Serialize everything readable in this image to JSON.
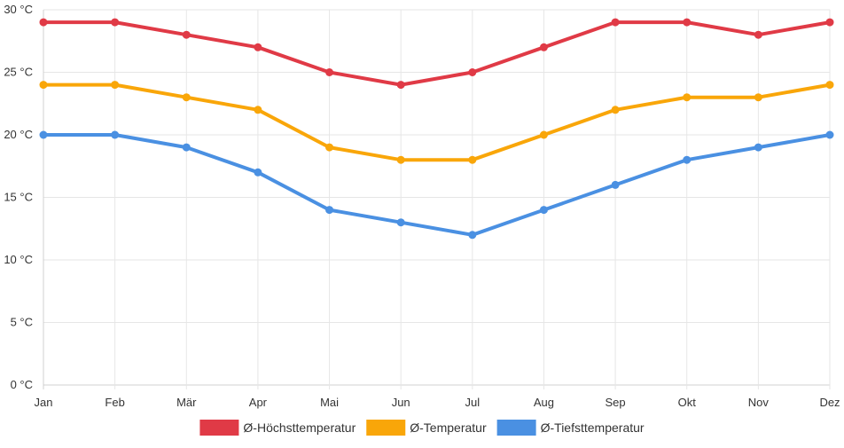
{
  "chart_data": {
    "type": "line",
    "categories": [
      "Jan",
      "Feb",
      "Mär",
      "Apr",
      "Mai",
      "Jun",
      "Jul",
      "Aug",
      "Sep",
      "Okt",
      "Nov",
      "Dez"
    ],
    "ylim": [
      0,
      30
    ],
    "y_ticks": [
      {
        "value": 0,
        "label": "0 °C"
      },
      {
        "value": 5,
        "label": "5 °C"
      },
      {
        "value": 10,
        "label": "10 °C"
      },
      {
        "value": 15,
        "label": "15 °C"
      },
      {
        "value": 20,
        "label": "20 °C"
      },
      {
        "value": 25,
        "label": "25 °C"
      },
      {
        "value": 30,
        "label": "30 °C"
      }
    ],
    "grid": true,
    "legend_position": "bottom",
    "series": [
      {
        "name": "Ø-Höchsttemperatur",
        "color": "#e03a46",
        "values": [
          29,
          29,
          28,
          27,
          25,
          24,
          25,
          27,
          29,
          29,
          28,
          29
        ]
      },
      {
        "name": "Ø-Temperatur",
        "color": "#f9a609",
        "values": [
          24,
          24,
          23,
          22,
          19,
          18,
          18,
          20,
          22,
          23,
          23,
          24
        ]
      },
      {
        "name": "Ø-Tiefsttemperatur",
        "color": "#4a90e2",
        "values": [
          20,
          20,
          19,
          17,
          14,
          13,
          12,
          14,
          16,
          18,
          19,
          20
        ]
      }
    ]
  }
}
